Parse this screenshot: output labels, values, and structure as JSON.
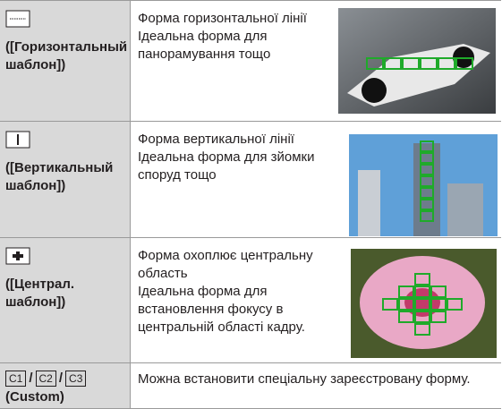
{
  "table": {
    "rows": [
      {
        "label": "([Горизонтальный шаблон])",
        "text": [
          "Форма горизонтальної лінії",
          "Ідеальна форма для панорамування тощо"
        ]
      },
      {
        "label": "([Вертикальный шаблон])",
        "text": [
          "Форма вертикальної лінії",
          "Ідеальна форма для зйомки споруд тощо"
        ]
      },
      {
        "label": "([Централ. шаблон])",
        "text": [
          "Форма охоплює центральну область",
          "Ідеальна форма для встановлення фокусу в центральній області кадру."
        ]
      }
    ],
    "custom": {
      "icons": [
        "C1",
        "C2",
        "C3"
      ],
      "separator": "/",
      "label": "(Custom)",
      "text": "Можна встановити спеціальну зареєстровану форму."
    }
  }
}
